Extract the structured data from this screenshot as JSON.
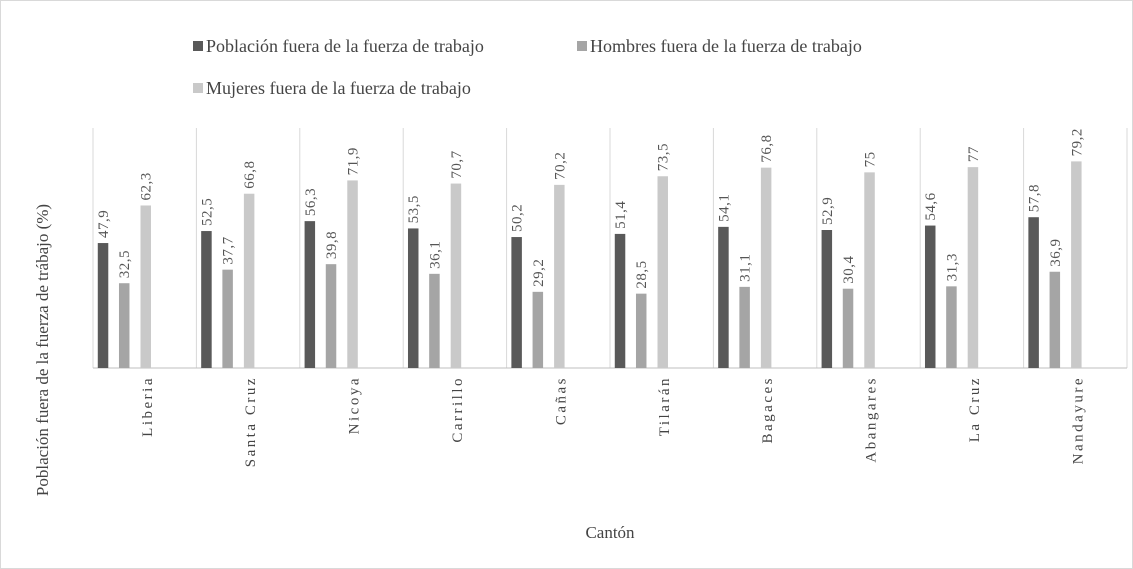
{
  "chart_data": {
    "type": "bar",
    "categories": [
      "Liberia",
      "Santa Cruz",
      "Nicoya",
      "Carrillo",
      "Cañas",
      "Tilarán",
      "Bagaces",
      "Abangares",
      "La Cruz",
      "Nandayure"
    ],
    "series": [
      {
        "name": "Población fuera de la fuerza de trabajo",
        "color": "#595959",
        "values": [
          47.9,
          52.5,
          56.3,
          53.5,
          50.2,
          51.4,
          54.1,
          52.9,
          54.6,
          57.8
        ],
        "value_labels": [
          "47,9",
          "52,5",
          "56,3",
          "53,5",
          "50,2",
          "51,4",
          "54,1",
          "52,9",
          "54,6",
          "57,8"
        ]
      },
      {
        "name": "Hombres fuera de la fuerza de trabajo",
        "color": "#a5a5a5",
        "values": [
          32.5,
          37.7,
          39.8,
          36.1,
          29.2,
          28.5,
          31.1,
          30.4,
          31.3,
          36.9
        ],
        "value_labels": [
          "32,5",
          "37,7",
          "39,8",
          "36,1",
          "29,2",
          "28,5",
          "31,1",
          "30,4",
          "31,3",
          "36,9"
        ]
      },
      {
        "name": "Mujeres fuera de la fuerza de trabajo",
        "color": "#c9c9c9",
        "values": [
          62.3,
          66.8,
          71.9,
          70.7,
          70.2,
          73.5,
          76.8,
          75,
          77,
          79.2
        ],
        "value_labels": [
          "62,3",
          "66,8",
          "71,9",
          "70,7",
          "70,2",
          "73,5",
          "76,8",
          "75",
          "77",
          "79,2"
        ]
      }
    ],
    "xlabel": "Cantón",
    "ylabel": "Población fuera de la fuerza de trábajo (%)",
    "ylim": [
      0,
      92
    ],
    "grid": true
  }
}
